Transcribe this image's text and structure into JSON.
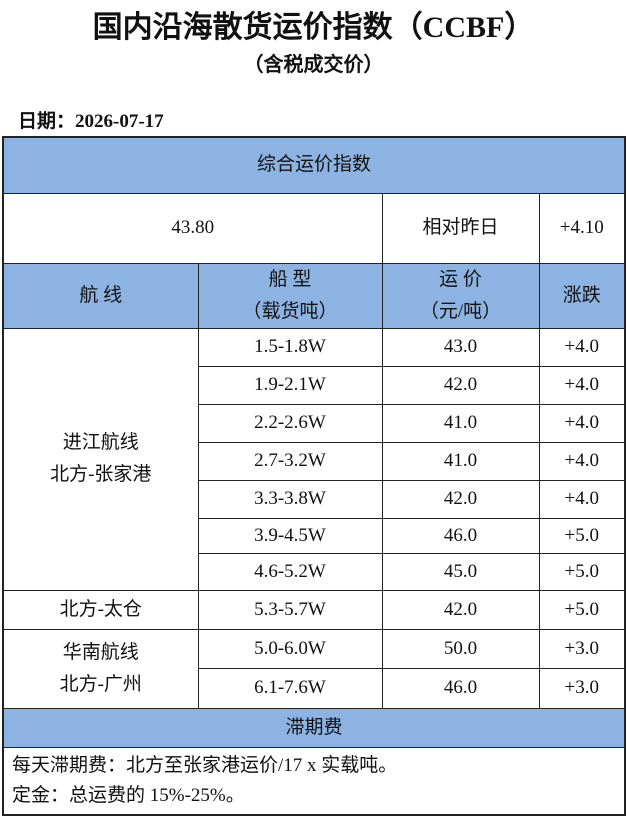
{
  "header": {
    "title": "国内沿海散货运价指数（CCBF）",
    "subtitle": "（含税成交价）",
    "date": "日期：2026-07-17"
  },
  "table": {
    "section_title": "综合运价指数",
    "index": "43.80",
    "compare_label": "相对昨日",
    "change": "+4.10",
    "columns": [
      [
        "航 线"
      ],
      [
        "船 型",
        "（载货吨）"
      ],
      [
        "运 价",
        "（元/吨）"
      ],
      [
        "涨跌"
      ]
    ],
    "groups": [
      {
        "route": [
          "进江航线",
          "北方-张家港"
        ],
        "rows": [
          [
            "1.5-1.8W",
            "43.0",
            "+4.0"
          ],
          [
            "1.9-2.1W",
            "42.0",
            "+4.0"
          ],
          [
            "2.2-2.6W",
            "41.0",
            "+4.0"
          ],
          [
            "2.7-3.2W",
            "41.0",
            "+4.0"
          ],
          [
            "3.3-3.8W",
            "42.0",
            "+4.0"
          ],
          [
            "3.9-4.5W",
            "46.0",
            "+5.0"
          ],
          [
            "4.6-5.2W",
            "45.0",
            "+5.0"
          ]
        ]
      },
      {
        "route": [
          "北方-太仓"
        ],
        "rows": [
          [
            "5.3-5.7W",
            "42.0",
            "+5.0"
          ]
        ]
      },
      {
        "route": [
          "华南航线",
          "北方-广州"
        ],
        "rows": [
          [
            "5.0-6.0W",
            "50.0",
            "+3.0"
          ],
          [
            "6.1-7.6W",
            "46.0",
            "+3.0"
          ]
        ]
      }
    ],
    "footer_title": "滞期费",
    "notes": [
      "每天滞期费：北方至张家港运价/17 x 实载吨。",
      "定金：总运费的 15%-25%。"
    ]
  }
}
